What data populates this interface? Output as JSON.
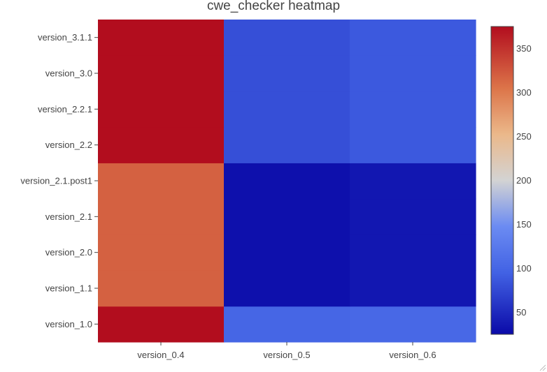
{
  "chart_data": {
    "type": "heatmap",
    "title": "cwe_checker heatmap",
    "x": [
      "version_0.4",
      "version_0.5",
      "version_0.6"
    ],
    "y": [
      "version_1.0",
      "version_1.1",
      "version_2.0",
      "version_2.1",
      "version_2.1.post1",
      "version_2.2",
      "version_2.2.1",
      "version_3.0",
      "version_3.1.1"
    ],
    "z": [
      [
        375,
        100,
        103
      ],
      [
        318,
        30,
        35
      ],
      [
        318,
        30,
        35
      ],
      [
        318,
        30,
        35
      ],
      [
        318,
        30,
        35
      ],
      [
        375,
        80,
        88
      ],
      [
        375,
        80,
        88
      ],
      [
        375,
        80,
        88
      ],
      [
        375,
        80,
        88
      ]
    ],
    "zlim": [
      25,
      375
    ],
    "colorscale": [
      [
        0.0,
        "#0a0aa8"
      ],
      [
        0.2,
        "#4262e4"
      ],
      [
        0.35,
        "#6b8bf2"
      ],
      [
        0.5,
        "#d3d3d3"
      ],
      [
        0.65,
        "#ebb88a"
      ],
      [
        0.8,
        "#dc7449"
      ],
      [
        1.0,
        "#b20d1e"
      ]
    ],
    "colorbar_ticks": [
      50,
      100,
      150,
      200,
      250,
      300,
      350
    ],
    "colorbar_placement": "right"
  }
}
